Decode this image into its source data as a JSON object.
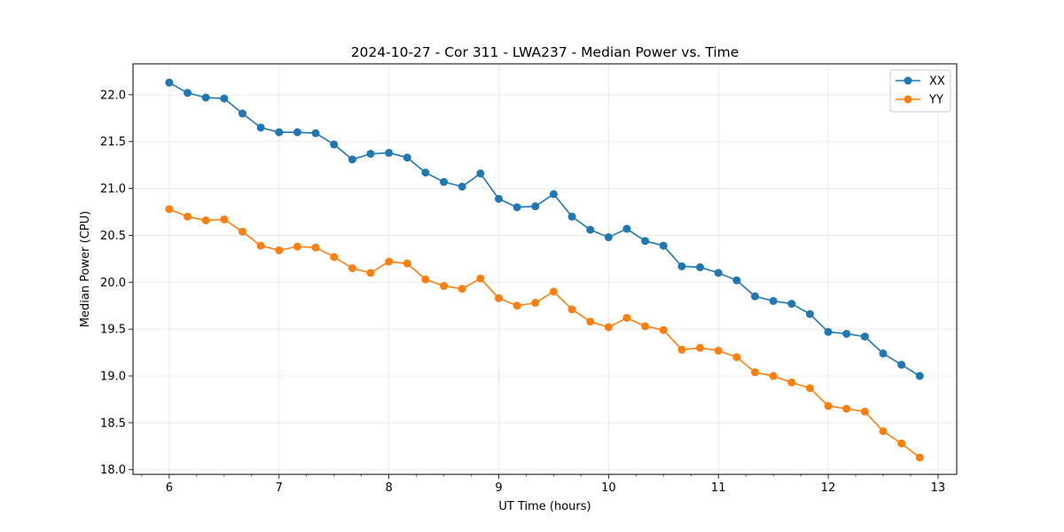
{
  "chart_data": {
    "type": "line",
    "title": "2024-10-27 - Cor 311 - LWA237 - Median Power vs. Time",
    "xlabel": "UT Time (hours)",
    "ylabel": "Median Power (CPU)",
    "xlim": [
      5.67,
      13.17
    ],
    "ylim": [
      17.95,
      22.33
    ],
    "xticks": [
      6,
      7,
      8,
      9,
      10,
      11,
      12,
      13
    ],
    "xtick_labels": [
      "6",
      "7",
      "8",
      "9",
      "10",
      "11",
      "12",
      "13"
    ],
    "xminor_step": 0.25,
    "yticks": [
      18.0,
      18.5,
      19.0,
      19.5,
      20.0,
      20.5,
      21.0,
      21.5,
      22.0
    ],
    "ytick_labels": [
      "18.0",
      "18.5",
      "19.0",
      "19.5",
      "20.0",
      "20.5",
      "21.0",
      "21.5",
      "22.0"
    ],
    "grid": true,
    "legend_position": "top-right",
    "x": [
      6.0,
      6.1667,
      6.3333,
      6.5,
      6.6667,
      6.8333,
      7.0,
      7.1667,
      7.3333,
      7.5,
      7.6667,
      7.8333,
      8.0,
      8.1667,
      8.3333,
      8.5,
      8.6667,
      8.8333,
      9.0,
      9.1667,
      9.3333,
      9.5,
      9.6667,
      9.8333,
      10.0,
      10.1667,
      10.3333,
      10.5,
      10.6667,
      10.8333,
      11.0,
      11.1667,
      11.3333,
      11.5,
      11.6667,
      11.8333,
      12.0,
      12.1667,
      12.3333,
      12.5,
      12.6667,
      12.8333
    ],
    "series": [
      {
        "name": "XX",
        "color": "#1f77b4",
        "values": [
          22.13,
          22.02,
          21.97,
          21.96,
          21.8,
          21.65,
          21.6,
          21.6,
          21.59,
          21.47,
          21.31,
          21.37,
          21.38,
          21.33,
          21.17,
          21.07,
          21.02,
          21.16,
          20.89,
          20.8,
          20.81,
          20.94,
          20.7,
          20.56,
          20.48,
          20.57,
          20.44,
          20.39,
          20.17,
          20.16,
          20.1,
          20.02,
          19.85,
          19.8,
          19.77,
          19.66,
          19.47,
          19.45,
          19.42,
          19.24,
          19.12,
          19.0
        ]
      },
      {
        "name": "YY",
        "color": "#ff7f0e",
        "values": [
          20.78,
          20.7,
          20.66,
          20.67,
          20.54,
          20.39,
          20.34,
          20.38,
          20.37,
          20.27,
          20.15,
          20.1,
          20.22,
          20.2,
          20.03,
          19.96,
          19.93,
          20.04,
          19.83,
          19.75,
          19.78,
          19.9,
          19.71,
          19.58,
          19.52,
          19.62,
          19.53,
          19.49,
          19.28,
          19.3,
          19.27,
          19.2,
          19.04,
          19.0,
          18.93,
          18.87,
          18.68,
          18.65,
          18.62,
          18.41,
          18.28,
          18.13
        ]
      }
    ]
  }
}
